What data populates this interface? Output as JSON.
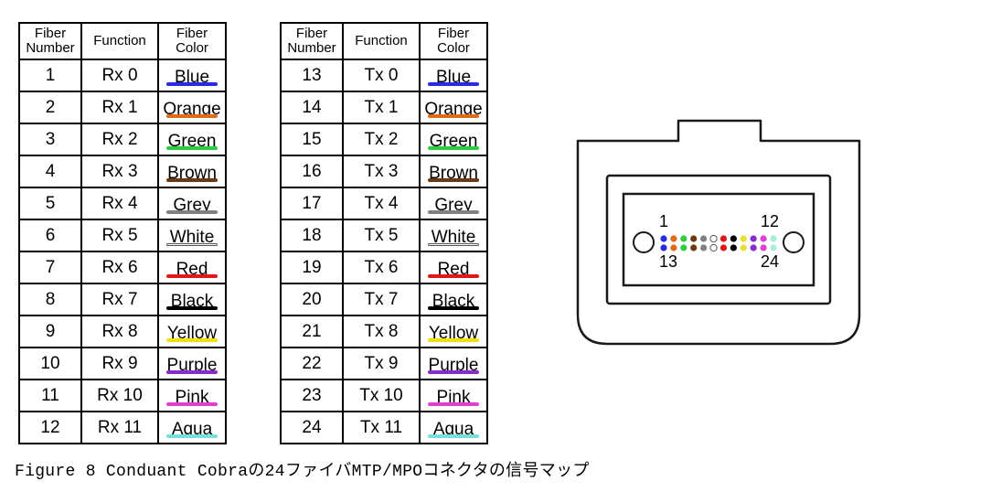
{
  "headers": {
    "fiber_number_line1": "Fiber",
    "fiber_number_line2": "Number",
    "function": "Function",
    "fiber_color_line1": "Fiber",
    "fiber_color_line2": "Color"
  },
  "colors": {
    "Blue": {
      "hex": "#2a2ae0",
      "outlined": false
    },
    "Orange": {
      "hex": "#e06a1a",
      "outlined": false
    },
    "Green": {
      "hex": "#2ecc40",
      "outlined": false
    },
    "Brown": {
      "hex": "#6b3a12",
      "outlined": false
    },
    "Grey": {
      "hex": "#808080",
      "outlined": false
    },
    "White": {
      "hex": "#ffffff",
      "outlined": true
    },
    "Red": {
      "hex": "#e01818",
      "outlined": false
    },
    "Black": {
      "hex": "#000000",
      "outlined": false
    },
    "Yellow": {
      "hex": "#f0e010",
      "outlined": false
    },
    "Purple": {
      "hex": "#8a2bcc",
      "outlined": false
    },
    "Pink": {
      "hex": "#e040d0",
      "outlined": false
    },
    "Aqua": {
      "hex": "#78e0d8",
      "outlined": false
    }
  },
  "dot_colors": {
    "Blue": "#2a2ae0",
    "Orange": "#e06a1a",
    "Green": "#2ecc40",
    "Brown": "#6b3a12",
    "Grey": "#808080",
    "White": "#ffffff",
    "Red": "#e01818",
    "Black": "#000000",
    "Yellow": "#e8e030",
    "Purple": "#8a2bcc",
    "Pink": "#e040d0",
    "Aqua": "#a8ecdc"
  },
  "table_rx": [
    {
      "num": "1",
      "fn": "Rx 0",
      "color": "Blue"
    },
    {
      "num": "2",
      "fn": "Rx 1",
      "color": "Orange"
    },
    {
      "num": "3",
      "fn": "Rx 2",
      "color": "Green"
    },
    {
      "num": "4",
      "fn": "Rx 3",
      "color": "Brown"
    },
    {
      "num": "5",
      "fn": "Rx 4",
      "color": "Grey"
    },
    {
      "num": "6",
      "fn": "Rx 5",
      "color": "White"
    },
    {
      "num": "7",
      "fn": "Rx 6",
      "color": "Red"
    },
    {
      "num": "8",
      "fn": "Rx 7",
      "color": "Black"
    },
    {
      "num": "9",
      "fn": "Rx 8",
      "color": "Yellow"
    },
    {
      "num": "10",
      "fn": "Rx 9",
      "color": "Purple"
    },
    {
      "num": "11",
      "fn": "Rx 10",
      "color": "Pink"
    },
    {
      "num": "12",
      "fn": "Rx 11",
      "color": "Aqua"
    }
  ],
  "table_tx": [
    {
      "num": "13",
      "fn": "Tx 0",
      "color": "Blue"
    },
    {
      "num": "14",
      "fn": "Tx 1",
      "color": "Orange"
    },
    {
      "num": "15",
      "fn": "Tx 2",
      "color": "Green"
    },
    {
      "num": "16",
      "fn": "Tx 3",
      "color": "Brown"
    },
    {
      "num": "17",
      "fn": "Tx 4",
      "color": "Grey"
    },
    {
      "num": "18",
      "fn": "Tx 5",
      "color": "White"
    },
    {
      "num": "19",
      "fn": "Tx 6",
      "color": "Red"
    },
    {
      "num": "20",
      "fn": "Tx 7",
      "color": "Black"
    },
    {
      "num": "21",
      "fn": "Tx 8",
      "color": "Yellow"
    },
    {
      "num": "22",
      "fn": "Tx 9",
      "color": "Purple"
    },
    {
      "num": "23",
      "fn": "Tx 10",
      "color": "Pink"
    },
    {
      "num": "24",
      "fn": "Tx 11",
      "color": "Aqua"
    }
  ],
  "connector": {
    "labels": {
      "tl": "1",
      "tr": "12",
      "bl": "13",
      "br": "24"
    },
    "row_top": [
      "Blue",
      "Orange",
      "Green",
      "Brown",
      "Grey",
      "White",
      "Red",
      "Black",
      "Yellow",
      "Purple",
      "Pink",
      "Aqua"
    ],
    "row_bottom": [
      "Blue",
      "Orange",
      "Green",
      "Brown",
      "Grey",
      "White",
      "Red",
      "Black",
      "Yellow",
      "Purple",
      "Pink",
      "Aqua"
    ],
    "stroke": "#1a1a1a",
    "stroke_width": 2.5,
    "pin_stroke": "#1a1a1a",
    "label_fontsize": 18
  },
  "caption": "Figure 8  Conduant Cobraの24ファイバMTP/MPOコネクタの信号マップ",
  "style": {
    "border_color": "#000000",
    "cell_font_size": 19,
    "header_font_size": 15,
    "color_label_font_size": 15,
    "table_row_height": 35,
    "table_header_height": 40
  }
}
